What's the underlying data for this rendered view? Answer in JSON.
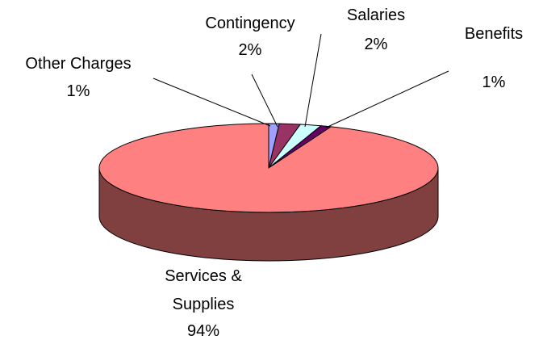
{
  "chart_data": {
    "type": "pie3d",
    "categories": [
      "Other Charges",
      "Contingency",
      "Salaries",
      "Benefits",
      "Services & Supplies"
    ],
    "values": [
      1,
      2,
      2,
      1,
      94
    ],
    "value_labels": [
      "1%",
      "2%",
      "2%",
      "1%",
      "94%"
    ],
    "colors": [
      "#a0a0ff",
      "#993366",
      "#ccffff",
      "#660066",
      "#ff8080"
    ]
  }
}
